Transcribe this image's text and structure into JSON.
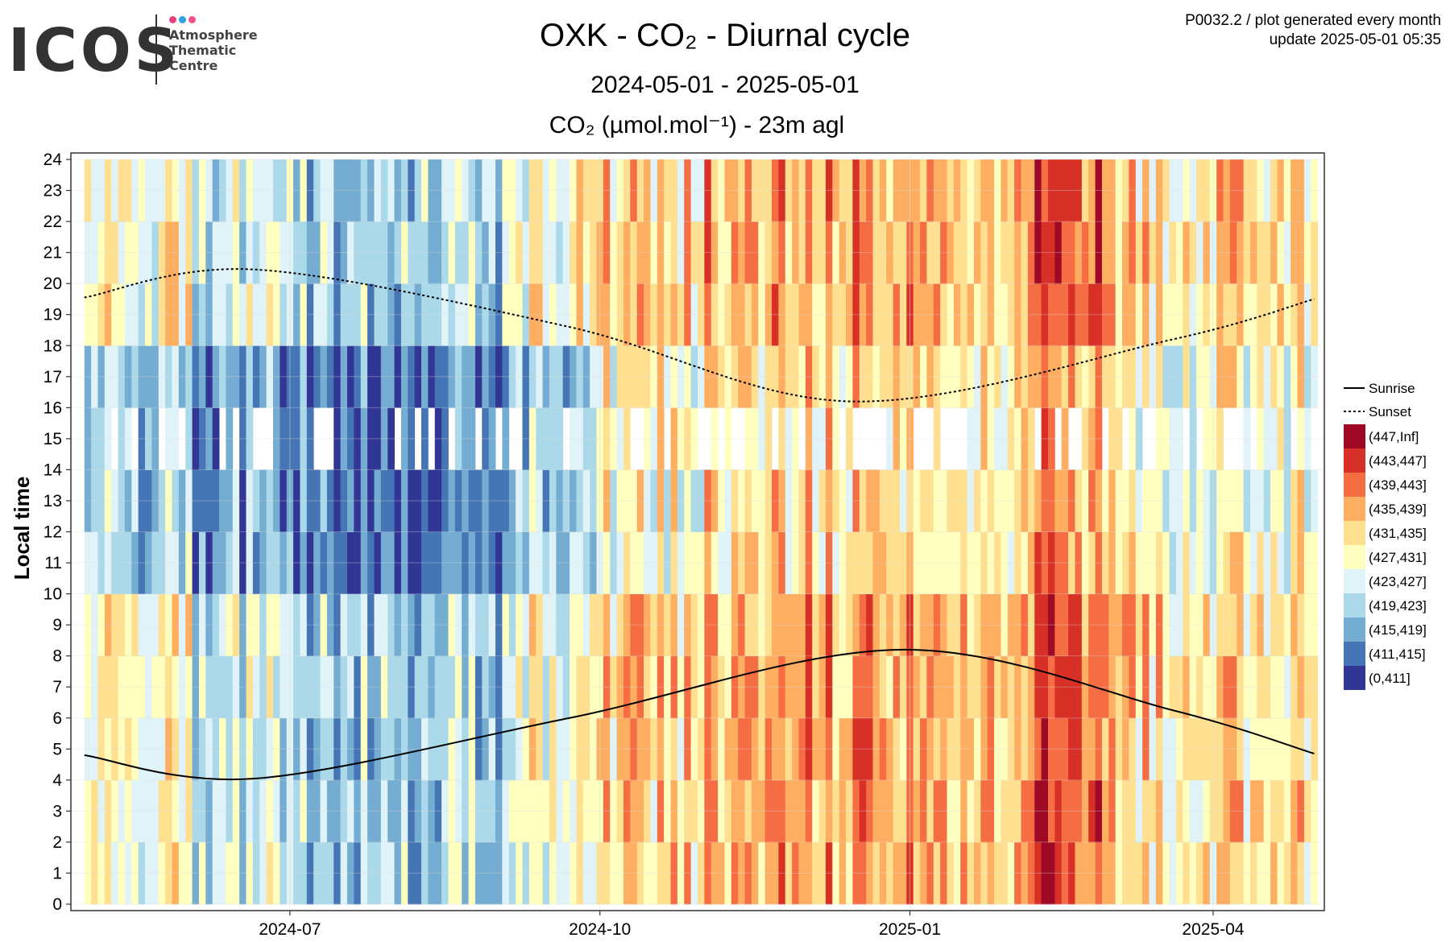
{
  "header": {
    "logo": {
      "word": "ICOS",
      "lines": [
        "Atmosphere",
        "Thematic",
        "Centre"
      ],
      "dot_colors": [
        "#e8407f",
        "#2aa3e0",
        "#f0508a"
      ]
    },
    "title": "OXK - CO₂ - Diurnal cycle",
    "subtitle": "2024-05-01 - 2025-05-01",
    "species_title": "CO₂ (µmol.mol⁻¹) - 23m agl",
    "meta_line1": "P0032.2 / plot generated every month",
    "meta_line2": "update  2025-05-01 05:35"
  },
  "chart_data": {
    "type": "heatmap",
    "x_range": [
      "2024-05-01",
      "2025-05-01"
    ],
    "xlim_dates": [
      "2024-04-27",
      "2025-05-04"
    ],
    "x_ticks": [
      {
        "date": "2024-07-01",
        "label": "2024-07"
      },
      {
        "date": "2024-10-01",
        "label": "2024-10"
      },
      {
        "date": "2025-01-01",
        "label": "2025-01"
      },
      {
        "date": "2025-04-01",
        "label": "2025-04"
      }
    ],
    "ylabel": "Local time",
    "ylim": [
      0,
      24
    ],
    "y_ticks": [
      0,
      1,
      2,
      3,
      4,
      5,
      6,
      7,
      8,
      9,
      10,
      11,
      12,
      13,
      14,
      15,
      16,
      17,
      18,
      19,
      20,
      21,
      22,
      23,
      24
    ],
    "grid": true,
    "legend_position": "right",
    "color_bins": [
      {
        "label": "(447,Inf]",
        "color": "#9e0a26"
      },
      {
        "label": "(443,447]",
        "color": "#d73027"
      },
      {
        "label": "(439,443]",
        "color": "#f46d43"
      },
      {
        "label": "(435,439]",
        "color": "#fdae61"
      },
      {
        "label": "(431,435]",
        "color": "#fee090"
      },
      {
        "label": "(427,431]",
        "color": "#ffffbf"
      },
      {
        "label": "(423,427]",
        "color": "#e0f3f8"
      },
      {
        "label": "(419,423]",
        "color": "#abd9e9"
      },
      {
        "label": "(415,419]",
        "color": "#74add1"
      },
      {
        "label": "(411,415]",
        "color": "#4575b4"
      },
      {
        "label": "(0,411]",
        "color": "#313695"
      }
    ],
    "lines": [
      {
        "name": "Sunrise",
        "style": "solid",
        "points": [
          [
            "2024-05-01",
            4.8
          ],
          [
            "2024-06-21",
            4.05
          ],
          [
            "2024-09-22",
            6.0
          ],
          [
            "2024-12-29",
            8.2
          ],
          [
            "2025-03-20",
            6.25
          ],
          [
            "2025-05-01",
            4.85
          ]
        ]
      },
      {
        "name": "Sunset",
        "style": "dashed",
        "points": [
          [
            "2024-05-01",
            19.55
          ],
          [
            "2024-06-21",
            20.45
          ],
          [
            "2024-09-22",
            18.6
          ],
          [
            "2024-12-15",
            16.2
          ],
          [
            "2025-03-20",
            18.2
          ],
          [
            "2025-05-01",
            19.5
          ]
        ]
      }
    ],
    "monthly_typical_bin": [
      {
        "month": "2024-05",
        "day": "(419,423]",
        "night": "(427,431]"
      },
      {
        "month": "2024-06",
        "day": "(415,419]",
        "night": "(423,427]"
      },
      {
        "month": "2024-07",
        "day": "(411,415]",
        "night": "(419,423]"
      },
      {
        "month": "2024-08",
        "day": "(411,415]",
        "night": "(419,423]"
      },
      {
        "month": "2024-09",
        "day": "(419,423]",
        "night": "(427,431]"
      },
      {
        "month": "2024-10",
        "day": "(427,431]",
        "night": "(431,435]"
      },
      {
        "month": "2024-11",
        "day": "(431,435]",
        "night": "(435,439]"
      },
      {
        "month": "2024-12",
        "day": "(431,435]",
        "night": "(435,439]"
      },
      {
        "month": "2025-01",
        "day": "(431,435]",
        "night": "(435,439]"
      },
      {
        "month": "2025-02",
        "day": "(435,439]",
        "night": "(439,443]"
      },
      {
        "month": "2025-03",
        "day": "(427,431]",
        "night": "(431,435]"
      },
      {
        "month": "2025-04",
        "day": "(427,431]",
        "night": "(431,435]"
      }
    ]
  }
}
